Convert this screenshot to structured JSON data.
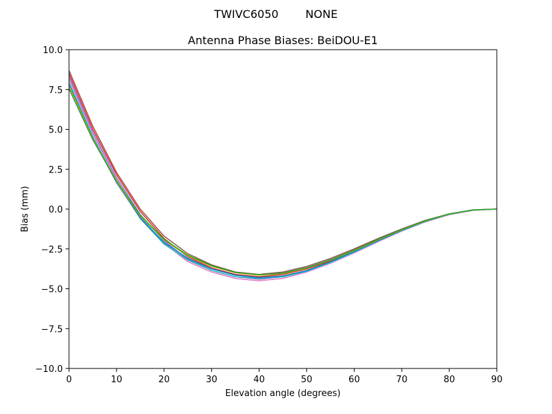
{
  "chart_data": {
    "type": "line",
    "suptitle_left": "TWIVC6050",
    "suptitle_right": "NONE",
    "title": "Antenna Phase Biases: BeiDOU-E1",
    "xlabel": "Elevation angle (degrees)",
    "ylabel": "Bias (mm)",
    "xlim": [
      0,
      90
    ],
    "ylim": [
      -10,
      10
    ],
    "xticks": [
      0,
      10,
      20,
      30,
      40,
      50,
      60,
      70,
      80,
      90
    ],
    "xtick_labels": [
      "0",
      "10",
      "20",
      "30",
      "40",
      "50",
      "60",
      "70",
      "80",
      "90"
    ],
    "yticks": [
      -10,
      -7.5,
      -5,
      -2.5,
      0,
      2.5,
      5,
      7.5,
      10
    ],
    "ytick_labels": [
      "−10.0",
      "−7.5",
      "−5.0",
      "−2.5",
      "0.0",
      "2.5",
      "5.0",
      "7.5",
      "10.0"
    ],
    "grid": false,
    "x": [
      0,
      5,
      10,
      15,
      20,
      25,
      30,
      35,
      40,
      45,
      50,
      55,
      60,
      65,
      70,
      75,
      80,
      85,
      90
    ],
    "series": [
      {
        "color": "#8c564b",
        "values": [
          8.7,
          5.2,
          2.3,
          0.0,
          -1.7,
          -2.8,
          -3.5,
          -3.95,
          -4.1,
          -3.95,
          -3.6,
          -3.1,
          -2.5,
          -1.85,
          -1.25,
          -0.7,
          -0.3,
          -0.05,
          0.0
        ]
      },
      {
        "color": "#d62728",
        "values": [
          8.5,
          5.0,
          2.15,
          -0.15,
          -1.85,
          -3.0,
          -3.7,
          -4.1,
          -4.25,
          -4.1,
          -3.75,
          -3.25,
          -2.6,
          -1.95,
          -1.3,
          -0.75,
          -0.32,
          -0.06,
          0.0
        ]
      },
      {
        "color": "#9467bd",
        "values": [
          8.3,
          4.8,
          1.95,
          -0.35,
          -2.0,
          -3.15,
          -3.85,
          -4.25,
          -4.4,
          -4.25,
          -3.85,
          -3.35,
          -2.7,
          -2.0,
          -1.35,
          -0.78,
          -0.34,
          -0.07,
          0.0
        ]
      },
      {
        "color": "#e377c2",
        "values": [
          8.1,
          4.6,
          1.8,
          -0.5,
          -2.15,
          -3.3,
          -3.95,
          -4.35,
          -4.5,
          -4.35,
          -3.95,
          -3.4,
          -2.75,
          -2.05,
          -1.38,
          -0.8,
          -0.35,
          -0.08,
          0.0
        ]
      },
      {
        "color": "#17becf",
        "values": [
          7.9,
          4.5,
          1.7,
          -0.6,
          -2.2,
          -3.2,
          -3.85,
          -4.25,
          -4.35,
          -4.25,
          -3.9,
          -3.35,
          -2.7,
          -2.0,
          -1.35,
          -0.77,
          -0.33,
          -0.07,
          0.0
        ]
      },
      {
        "color": "#1f77b4",
        "values": [
          7.8,
          4.45,
          1.65,
          -0.55,
          -2.1,
          -3.1,
          -3.75,
          -4.15,
          -4.3,
          -4.2,
          -3.85,
          -3.3,
          -2.65,
          -1.98,
          -1.33,
          -0.76,
          -0.32,
          -0.06,
          0.0
        ]
      },
      {
        "color": "#bcbd22",
        "values": [
          7.7,
          4.4,
          1.7,
          -0.45,
          -1.95,
          -2.95,
          -3.6,
          -4.0,
          -4.15,
          -4.05,
          -3.7,
          -3.2,
          -2.6,
          -1.93,
          -1.3,
          -0.74,
          -0.31,
          -0.06,
          0.0
        ]
      },
      {
        "color": "#2ca02c",
        "values": [
          7.55,
          4.35,
          1.75,
          -0.4,
          -1.9,
          -2.9,
          -3.55,
          -3.98,
          -4.12,
          -4.02,
          -3.68,
          -3.18,
          -2.57,
          -1.9,
          -1.28,
          -0.72,
          -0.3,
          -0.05,
          0.0
        ]
      }
    ]
  }
}
